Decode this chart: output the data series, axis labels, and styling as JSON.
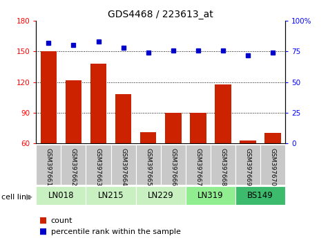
{
  "title": "GDS4468 / 223613_at",
  "samples": [
    "GSM397661",
    "GSM397662",
    "GSM397663",
    "GSM397664",
    "GSM397665",
    "GSM397666",
    "GSM397667",
    "GSM397668",
    "GSM397669",
    "GSM397670"
  ],
  "counts": [
    150,
    122,
    138,
    108,
    71,
    90,
    90,
    118,
    63,
    70
  ],
  "percentiles": [
    82,
    80,
    83,
    78,
    74,
    76,
    76,
    76,
    72,
    74
  ],
  "cell_lines": [
    {
      "label": "LN018",
      "start": 0,
      "end": 2,
      "color": "#c8f0c0"
    },
    {
      "label": "LN215",
      "start": 2,
      "end": 4,
      "color": "#c8f0c0"
    },
    {
      "label": "LN229",
      "start": 4,
      "end": 6,
      "color": "#c8f0c0"
    },
    {
      "label": "LN319",
      "start": 6,
      "end": 8,
      "color": "#90ee90"
    },
    {
      "label": "BS149",
      "start": 8,
      "end": 10,
      "color": "#2ecc71"
    }
  ],
  "bar_color": "#cc2200",
  "dot_color": "#0000cc",
  "left_ylim": [
    60,
    180
  ],
  "right_ylim": [
    0,
    100
  ],
  "left_yticks": [
    60,
    90,
    120,
    150,
    180
  ],
  "right_yticks": [
    0,
    25,
    50,
    75,
    100
  ],
  "grid_values": [
    90,
    120,
    150
  ],
  "plot_bg": "#ffffff",
  "sample_bg": "#c8c8c8",
  "bar_bottom": 60
}
